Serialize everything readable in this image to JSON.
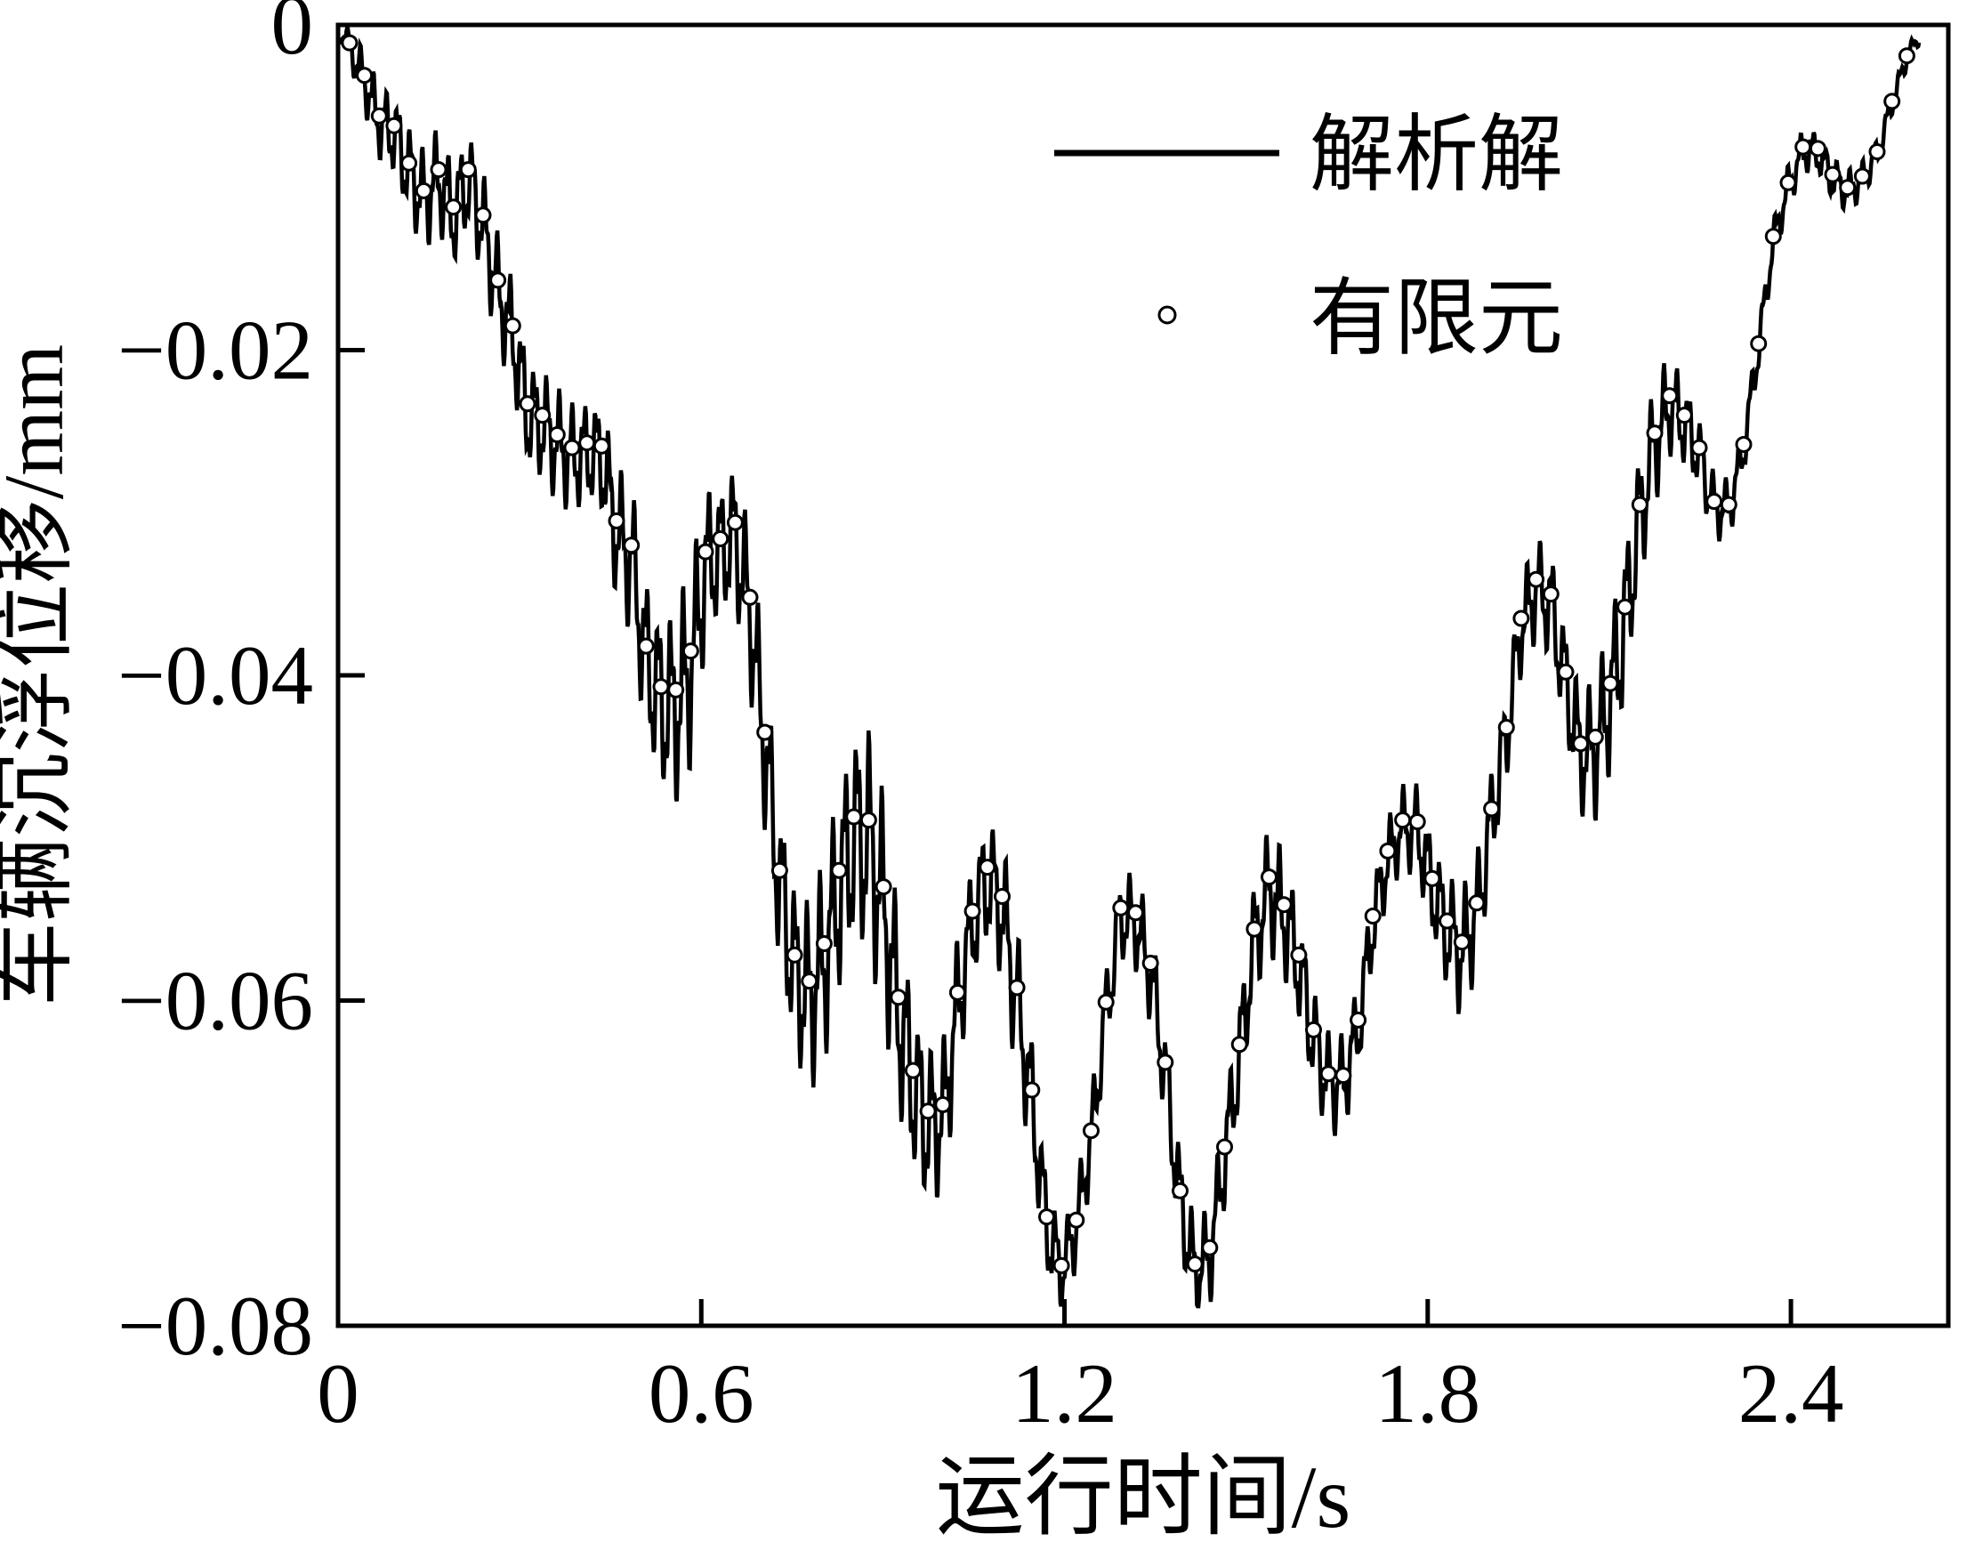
{
  "page": {
    "background": "#ffffff",
    "ink": "#000000"
  },
  "chart_data": {
    "type": "line",
    "title": "",
    "xlabel": "运行时间/s",
    "ylabel": "车辆沉浮位移/mm",
    "xlim": [
      0,
      2.66
    ],
    "ylim": [
      -0.08,
      0
    ],
    "xticks": [
      0,
      0.6,
      1.2,
      1.8,
      2.4
    ],
    "xtick_labels": [
      "0",
      "0.6",
      "1.2",
      "1.8",
      "2.4"
    ],
    "yticks": [
      0,
      -0.02,
      -0.04,
      -0.06,
      -0.08
    ],
    "ytick_labels": [
      "0",
      "−0.02",
      "−0.04",
      "−0.06",
      "−0.08"
    ],
    "grid": false,
    "legend": {
      "position": "upper center-right, inside plot",
      "entries": [
        {
          "label": "解析解",
          "marker": "solid-line"
        },
        {
          "label": "有限元",
          "marker": "open-circle"
        }
      ]
    },
    "series": [
      {
        "name": "解析解",
        "type": "line",
        "color": "#000000",
        "description": "Analytic solution: dense high-frequency oscillation around the FEM backbone; global minimum ≈ −0.0775 mm near t ≈ 1.2 s and t ≈ 1.44 s, returning to ≈ 0 at t ≈ 2.6 s.",
        "start_anchor": [
          0.004,
          -0.0001
        ],
        "end_anchor": [
          2.612,
          -0.0006
        ],
        "ripple": {
          "main_period_s": 0.0205,
          "main_weight": 0.8,
          "main_phase_rad": 2.64,
          "secondary_period_s": 0.0073,
          "secondary_weight": 0.35,
          "secondary_phase_rad": 1.3,
          "bias": -0.2,
          "amplitude_profile": [
            [
              0.0,
              0.0006
            ],
            [
              0.05,
              0.0018
            ],
            [
              0.12,
              0.0028
            ],
            [
              0.22,
              0.003
            ],
            [
              0.32,
              0.0032
            ],
            [
              0.42,
              0.003
            ],
            [
              0.5,
              0.0045
            ],
            [
              0.57,
              0.0058
            ],
            [
              0.63,
              0.0038
            ],
            [
              0.72,
              0.0048
            ],
            [
              0.8,
              0.0055
            ],
            [
              0.88,
              0.0065
            ],
            [
              0.95,
              0.005
            ],
            [
              1.05,
              0.0035
            ],
            [
              1.12,
              0.0042
            ],
            [
              1.2,
              0.0022
            ],
            [
              1.3,
              0.0026
            ],
            [
              1.38,
              0.003
            ],
            [
              1.45,
              0.0028
            ],
            [
              1.55,
              0.0036
            ],
            [
              1.65,
              0.0028
            ],
            [
              1.75,
              0.0022
            ],
            [
              1.85,
              0.0036
            ],
            [
              1.95,
              0.0026
            ],
            [
              2.05,
              0.0035
            ],
            [
              2.12,
              0.0046
            ],
            [
              2.2,
              0.0028
            ],
            [
              2.28,
              0.0018
            ],
            [
              2.37,
              0.0012
            ],
            [
              2.47,
              0.0013
            ],
            [
              2.56,
              0.0008
            ],
            [
              2.62,
              0.0004
            ]
          ]
        }
      },
      {
        "name": "有限元",
        "type": "scatter",
        "marker": "open-circle",
        "color": "#000000",
        "points": [
          [
            0.019,
            -0.0011
          ],
          [
            0.0435,
            -0.0031
          ],
          [
            0.068,
            -0.0056
          ],
          [
            0.0925,
            -0.0062
          ],
          [
            0.117,
            -0.0085
          ],
          [
            0.1415,
            -0.0102
          ],
          [
            0.166,
            -0.0089
          ],
          [
            0.1905,
            -0.0112
          ],
          [
            0.215,
            -0.0089
          ],
          [
            0.2395,
            -0.0117
          ],
          [
            0.264,
            -0.0157
          ],
          [
            0.2885,
            -0.0185
          ],
          [
            0.313,
            -0.0233
          ],
          [
            0.3375,
            -0.024
          ],
          [
            0.362,
            -0.0252
          ],
          [
            0.3865,
            -0.026
          ],
          [
            0.411,
            -0.0257
          ],
          [
            0.4355,
            -0.0259
          ],
          [
            0.46,
            -0.0305
          ],
          [
            0.4845,
            -0.032
          ],
          [
            0.509,
            -0.0382
          ],
          [
            0.5335,
            -0.0407
          ],
          [
            0.558,
            -0.0409
          ],
          [
            0.5825,
            -0.0385
          ],
          [
            0.607,
            -0.0324
          ],
          [
            0.6315,
            -0.0316
          ],
          [
            0.656,
            -0.0306
          ],
          [
            0.6805,
            -0.0352
          ],
          [
            0.705,
            -0.0435
          ],
          [
            0.7295,
            -0.052
          ],
          [
            0.754,
            -0.0572
          ],
          [
            0.7785,
            -0.0588
          ],
          [
            0.803,
            -0.0565
          ],
          [
            0.8275,
            -0.052
          ],
          [
            0.852,
            -0.0487
          ],
          [
            0.8765,
            -0.0489
          ],
          [
            0.901,
            -0.053
          ],
          [
            0.9255,
            -0.0598
          ],
          [
            0.95,
            -0.0643
          ],
          [
            0.9745,
            -0.0668
          ],
          [
            0.999,
            -0.0664
          ],
          [
            1.0235,
            -0.0595
          ],
          [
            1.048,
            -0.0545
          ],
          [
            1.0725,
            -0.0518
          ],
          [
            1.097,
            -0.0536
          ],
          [
            1.1215,
            -0.0592
          ],
          [
            1.146,
            -0.0655
          ],
          [
            1.1705,
            -0.0733
          ],
          [
            1.195,
            -0.0763
          ],
          [
            1.2195,
            -0.0735
          ],
          [
            1.244,
            -0.068
          ],
          [
            1.2685,
            -0.0601
          ],
          [
            1.293,
            -0.0543
          ],
          [
            1.3175,
            -0.0546
          ],
          [
            1.342,
            -0.0577
          ],
          [
            1.3665,
            -0.0638
          ],
          [
            1.391,
            -0.0717
          ],
          [
            1.4155,
            -0.0762
          ],
          [
            1.44,
            -0.0752
          ],
          [
            1.4645,
            -0.069
          ],
          [
            1.489,
            -0.0627
          ],
          [
            1.5135,
            -0.0556
          ],
          [
            1.538,
            -0.0524
          ],
          [
            1.5625,
            -0.0541
          ],
          [
            1.587,
            -0.0572
          ],
          [
            1.6115,
            -0.0618
          ],
          [
            1.636,
            -0.0645
          ],
          [
            1.6605,
            -0.0646
          ],
          [
            1.685,
            -0.0612
          ],
          [
            1.7095,
            -0.0548
          ],
          [
            1.734,
            -0.0508
          ],
          [
            1.7585,
            -0.0489
          ],
          [
            1.783,
            -0.049
          ],
          [
            1.8075,
            -0.0525
          ],
          [
            1.832,
            -0.0551
          ],
          [
            1.8565,
            -0.0564
          ],
          [
            1.881,
            -0.054
          ],
          [
            1.9055,
            -0.0482
          ],
          [
            1.93,
            -0.0432
          ],
          [
            1.9545,
            -0.0365
          ],
          [
            1.979,
            -0.0341
          ],
          [
            2.0035,
            -0.035
          ],
          [
            2.028,
            -0.0398
          ],
          [
            2.0525,
            -0.0442
          ],
          [
            2.077,
            -0.0438
          ],
          [
            2.1015,
            -0.0405
          ],
          [
            2.126,
            -0.0358
          ],
          [
            2.1505,
            -0.0295
          ],
          [
            2.175,
            -0.0251
          ],
          [
            2.1995,
            -0.0228
          ],
          [
            2.224,
            -0.024
          ],
          [
            2.2485,
            -0.026
          ],
          [
            2.273,
            -0.0293
          ],
          [
            2.2975,
            -0.0295
          ],
          [
            2.322,
            -0.0258
          ],
          [
            2.3465,
            -0.0196
          ],
          [
            2.371,
            -0.013
          ],
          [
            2.3955,
            -0.0097
          ],
          [
            2.42,
            -0.0075
          ],
          [
            2.4445,
            -0.0076
          ],
          [
            2.469,
            -0.0092
          ],
          [
            2.4935,
            -0.01
          ],
          [
            2.518,
            -0.0093
          ],
          [
            2.5425,
            -0.0078
          ],
          [
            2.567,
            -0.0047
          ],
          [
            2.5915,
            -0.0019
          ]
        ]
      }
    ]
  }
}
